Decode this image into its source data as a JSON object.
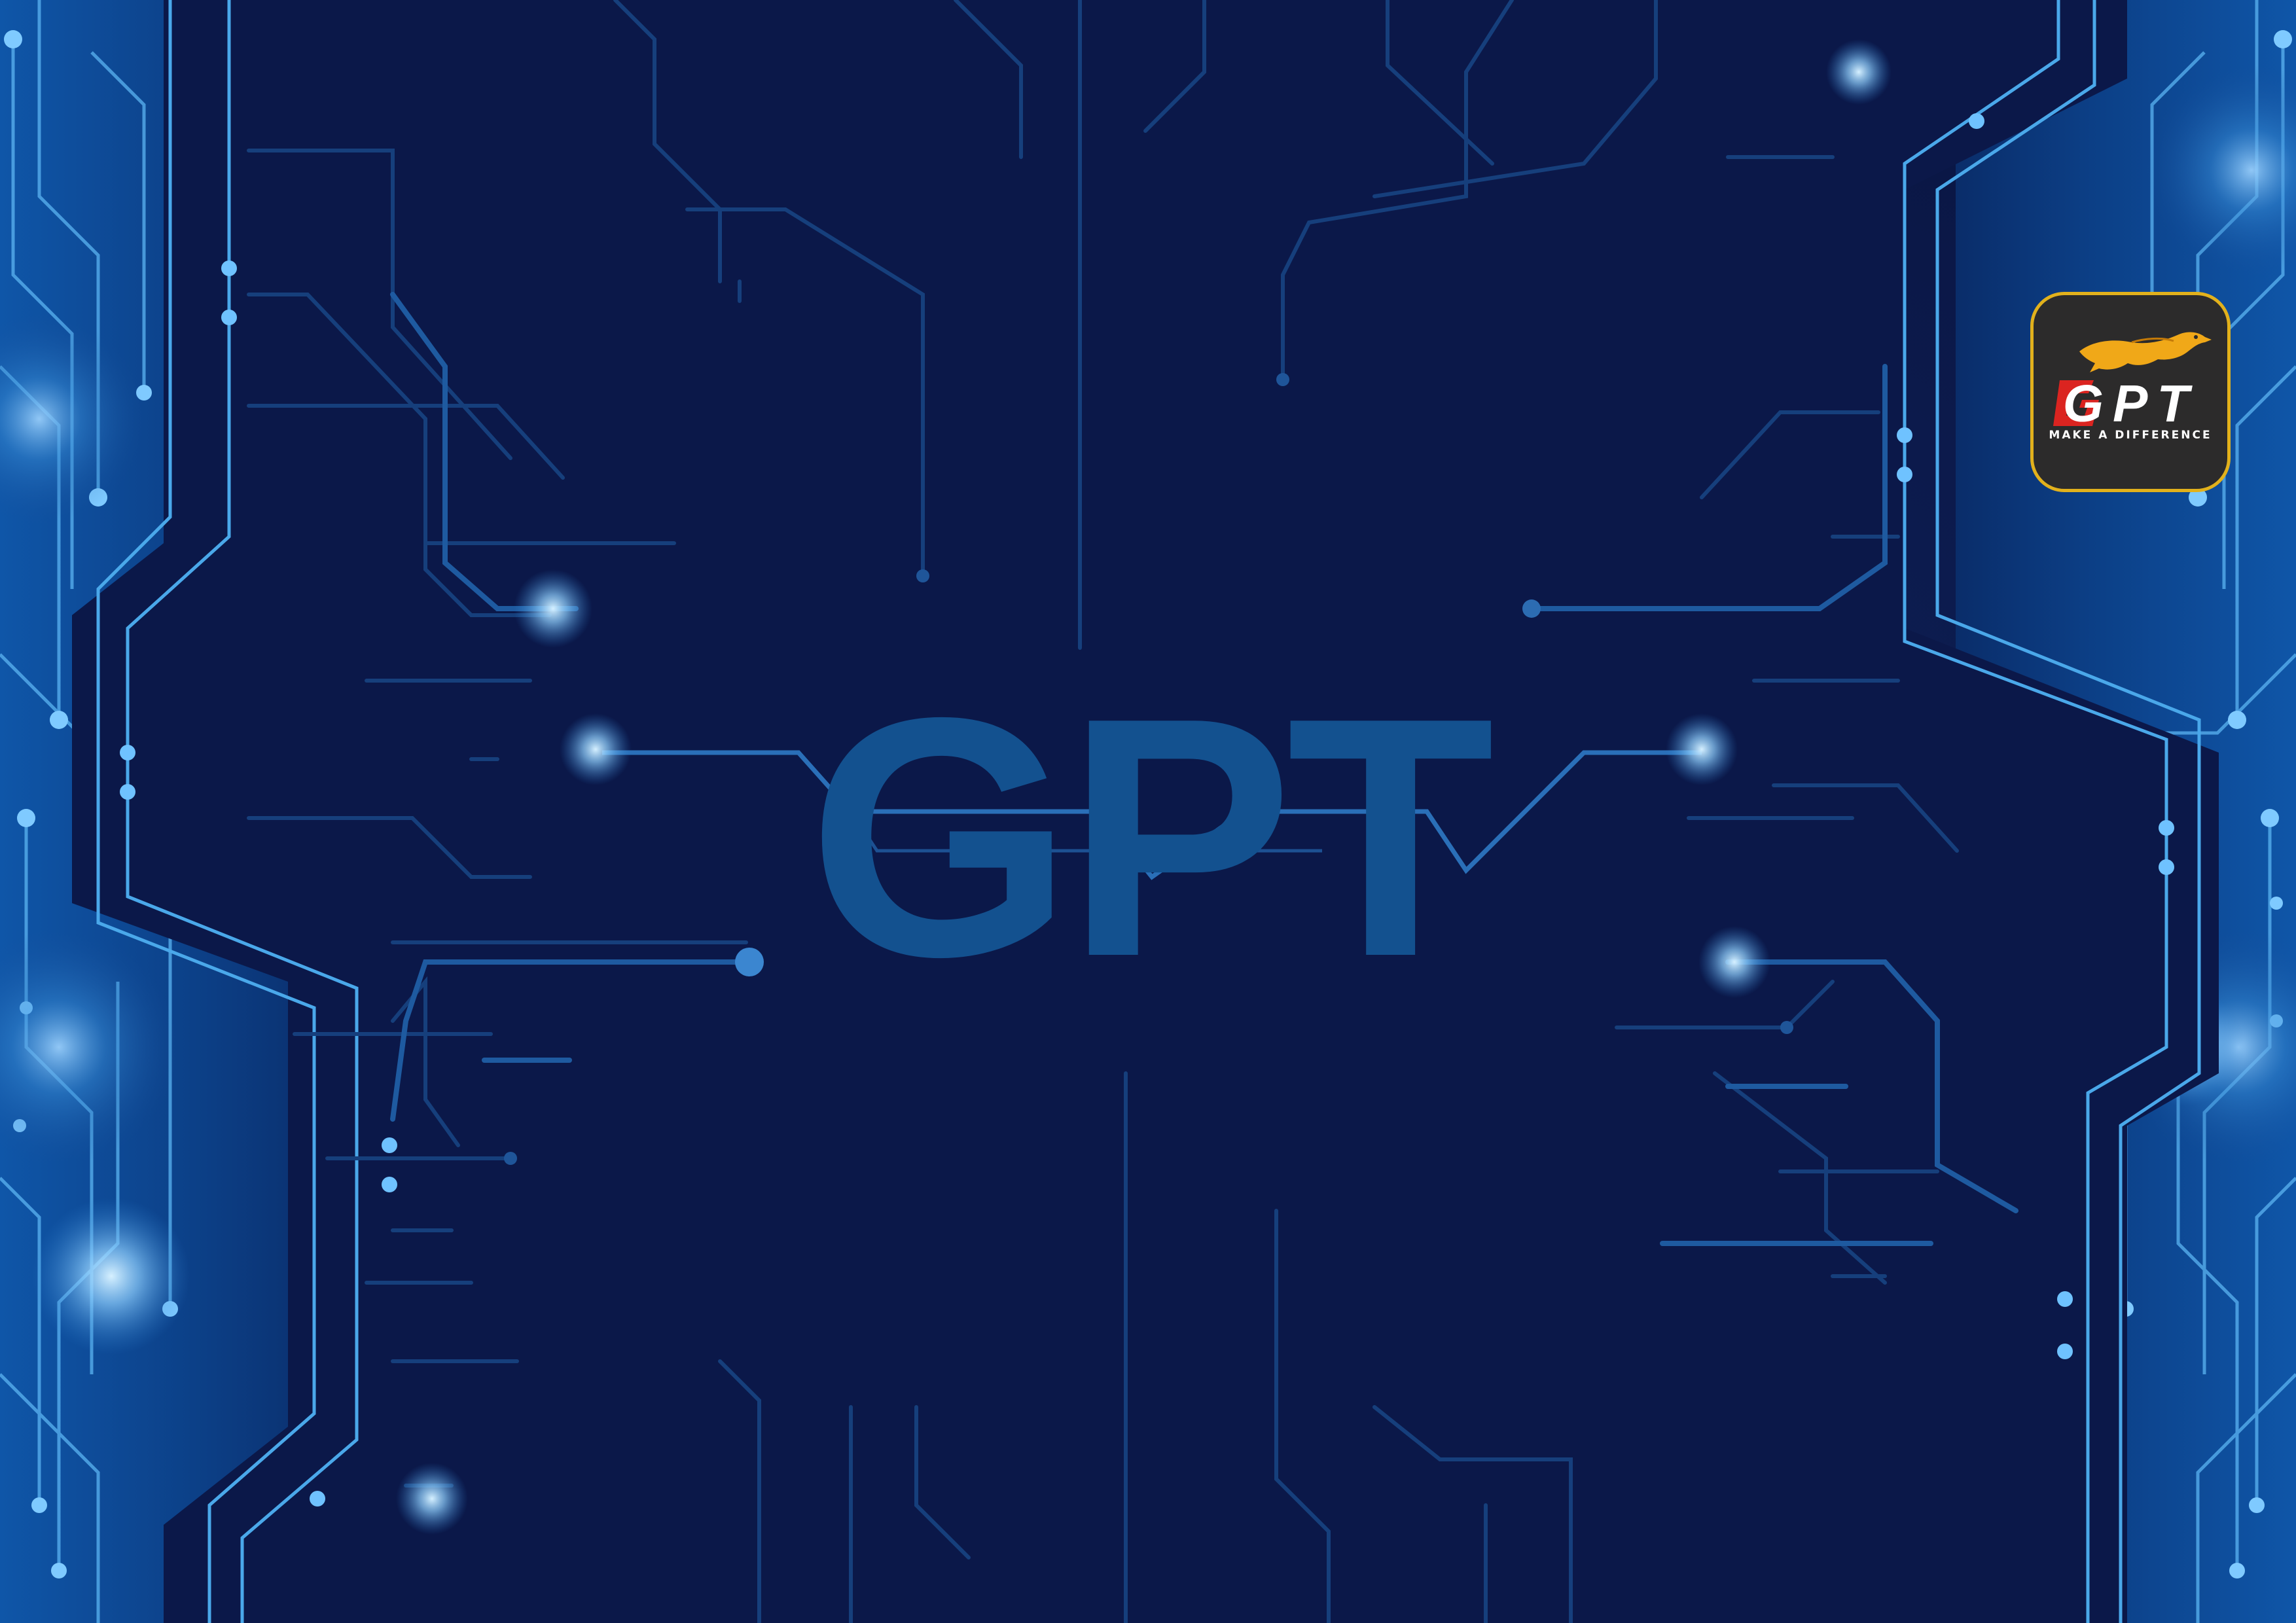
{
  "poster": {
    "title": "GPT",
    "logo": {
      "wordmark": "GPT",
      "tagline": "MAKE A DIFFERENCE",
      "icon": "leaping-cheetah-icon"
    }
  },
  "colors": {
    "background": "#0b1747",
    "panel": "#0c1a4f",
    "title": "#13518f",
    "circuit_line": "#1b4a8a",
    "circuit_bright": "#4fb0f0",
    "glow": "#8fd0ff",
    "logo_bg": "#2c2b2b",
    "logo_border": "#e2b11c",
    "logo_accent": "#e52420",
    "cheetah": "#f0a818"
  }
}
